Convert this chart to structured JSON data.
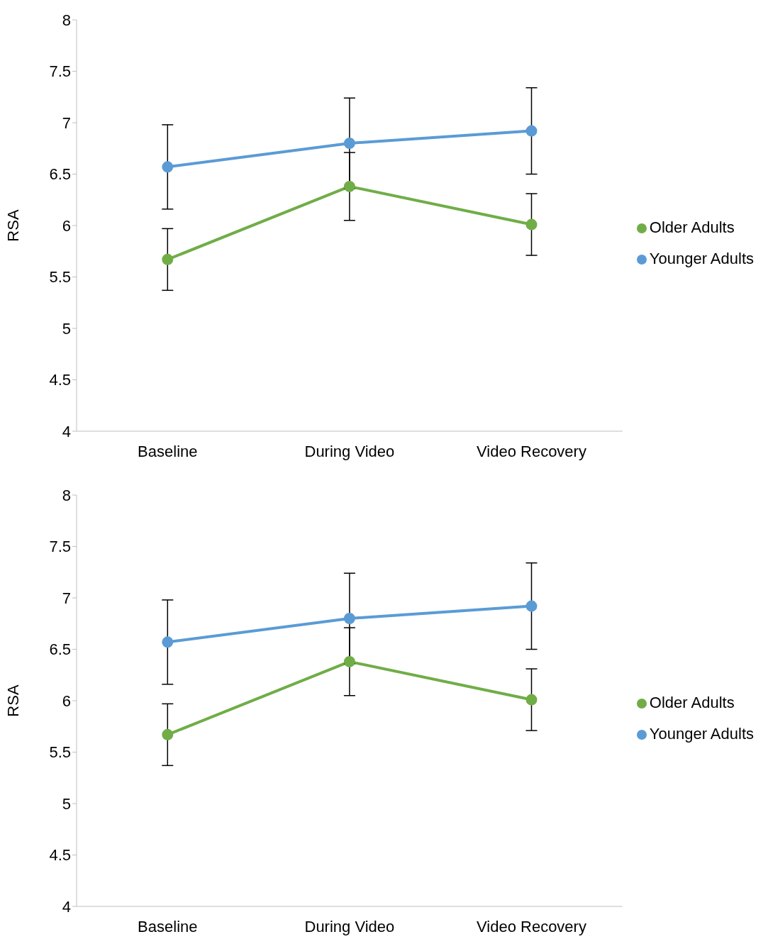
{
  "chart_data": [
    {
      "type": "line",
      "ylabel": "RSA",
      "categories": [
        "Baseline",
        "During Video",
        "Video Recovery"
      ],
      "ylim": [
        4,
        8
      ],
      "yticks": [
        4,
        4.5,
        5,
        5.5,
        6,
        6.5,
        7,
        7.5,
        8
      ],
      "legend": "right",
      "marker": "circle",
      "series": [
        {
          "name": "Older Adults",
          "color": "#70ad47",
          "values": [
            5.67,
            6.38,
            6.01
          ],
          "errors": [
            0.3,
            0.33,
            0.3
          ]
        },
        {
          "name": "Younger Adults",
          "color": "#5b9bd5",
          "values": [
            6.57,
            6.8,
            6.92
          ],
          "errors": [
            0.41,
            0.44,
            0.42
          ]
        }
      ]
    },
    {
      "type": "line",
      "ylabel": "RSA",
      "categories": [
        "Baseline",
        "During Video",
        "Video Recovery"
      ],
      "ylim": [
        4,
        8
      ],
      "yticks": [
        4,
        4.5,
        5,
        5.5,
        6,
        6.5,
        7,
        7.5,
        8
      ],
      "legend": "right",
      "marker": "circle",
      "series": [
        {
          "name": "Older Adults",
          "color": "#70ad47",
          "values": [
            5.67,
            6.38,
            6.01
          ],
          "errors": [
            0.3,
            0.33,
            0.3
          ]
        },
        {
          "name": "Younger Adults",
          "color": "#5b9bd5",
          "values": [
            6.57,
            6.8,
            6.92
          ],
          "errors": [
            0.41,
            0.44,
            0.42
          ]
        }
      ]
    }
  ]
}
